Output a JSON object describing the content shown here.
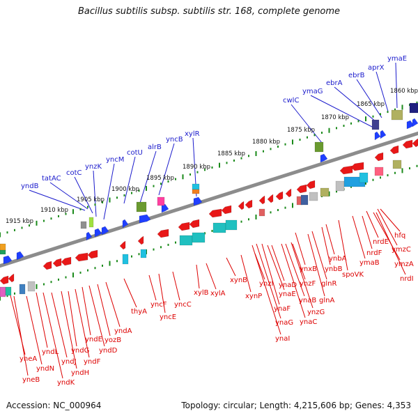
{
  "title": "Bacillus subtilis subsp. subtilis str. 168, complete genome",
  "footer": {
    "accession": "Accession: NC_000964",
    "topology": "Topology: circular; Length: 4,215,606 bp; Genes: 4,353"
  },
  "colors": {
    "upper_label": "#1a1acc",
    "lower_label": "#dd0000",
    "backbone": "#8c8c8c",
    "tick": "#1a8a1a",
    "forward_gene": "#1f3fff",
    "reverse_gene": "#e81818"
  },
  "scale_labels": [
    {
      "text": "1915 kbp",
      "kbp": 1915
    },
    {
      "text": "1910 kbp",
      "kbp": 1910
    },
    {
      "text": "1905 kbp",
      "kbp": 1905
    },
    {
      "text": "1900 kbp",
      "kbp": 1900
    },
    {
      "text": "1895 kbp",
      "kbp": 1895
    },
    {
      "text": "1890 kbp",
      "kbp": 1890
    },
    {
      "text": "1885 kbp",
      "kbp": 1885
    },
    {
      "text": "1880 kbp",
      "kbp": 1880
    },
    {
      "text": "1875 kbp",
      "kbp": 1875
    },
    {
      "text": "1870 kbp",
      "kbp": 1870
    },
    {
      "text": "1865 kbp",
      "kbp": 1865
    },
    {
      "text": "1860 kbp",
      "kbp": 1860
    }
  ],
  "upper_genes": [
    "yndB",
    "tatAC",
    "cotC",
    "ynzK",
    "yncM",
    "cotU",
    "alrB",
    "yncB",
    "xylR",
    "cwlC",
    "ymaG",
    "ebrA",
    "ebrB",
    "aprX",
    "ymaE"
  ],
  "lower_genes": [
    "yneA",
    "yneB",
    "yndN",
    "yndL",
    "yndK",
    "yndJ",
    "yndH",
    "yndG",
    "yndF",
    "yndE",
    "yndD",
    "yozB",
    "yndA",
    "thyA",
    "yncF",
    "yncE",
    "yncC",
    "xylB",
    "xylA",
    "xynB",
    "xynP",
    "ynzI",
    "ynaE",
    "ynaF",
    "ynaG",
    "ynaI",
    "ynaD",
    "ynzF",
    "ynaB",
    "ynaC",
    "ynxB",
    "ynzG",
    "glnR",
    "glnA",
    "ynbA",
    "ynbB",
    "spoVK",
    "ymaB",
    "nrdF",
    "nrdE",
    "ymzC",
    "ymzA",
    "nrdI",
    "hfq"
  ]
}
